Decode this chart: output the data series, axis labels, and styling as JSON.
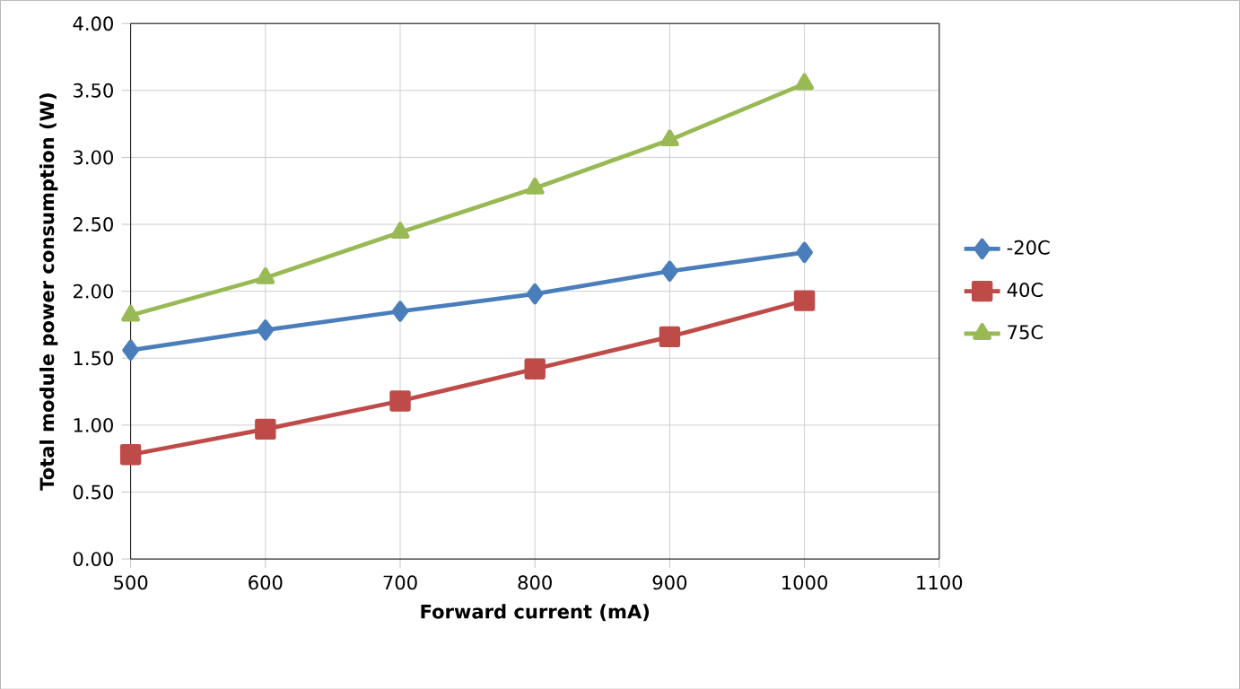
{
  "chart_data": {
    "type": "line",
    "xlabel": "Forward current (mA)",
    "ylabel": "Total module  power consumption  (W)",
    "x": [
      500,
      600,
      700,
      800,
      900,
      1000
    ],
    "series": [
      {
        "name": "-20C",
        "color": "#4a7ebb",
        "marker": "diamond",
        "values": [
          1.56,
          1.71,
          1.85,
          1.98,
          2.15,
          2.29
        ]
      },
      {
        "name": "40C",
        "color": "#be4b48",
        "marker": "square",
        "values": [
          0.78,
          0.97,
          1.18,
          1.42,
          1.66,
          1.93
        ]
      },
      {
        "name": "75C",
        "color": "#98b954",
        "marker": "triangle",
        "values": [
          1.82,
          2.1,
          2.44,
          2.77,
          3.13,
          3.55
        ]
      }
    ],
    "xlim": [
      500,
      1100
    ],
    "xticks": [
      500,
      600,
      700,
      800,
      900,
      1000,
      1100
    ],
    "ylim": [
      0,
      4
    ],
    "yticks": [
      {
        "value": 0,
        "label": "0.00"
      },
      {
        "value": 0.5,
        "label": "0.50"
      },
      {
        "value": 1,
        "label": "1.00"
      },
      {
        "value": 1.5,
        "label": "1.50"
      },
      {
        "value": 2,
        "label": "2.00"
      },
      {
        "value": 2.5,
        "label": "2.50"
      },
      {
        "value": 3,
        "label": "3.00"
      },
      {
        "value": 3.5,
        "label": "3.50"
      },
      {
        "value": 4,
        "label": "4.00"
      }
    ],
    "grid": true,
    "legend": "right",
    "line_style": "solid"
  }
}
